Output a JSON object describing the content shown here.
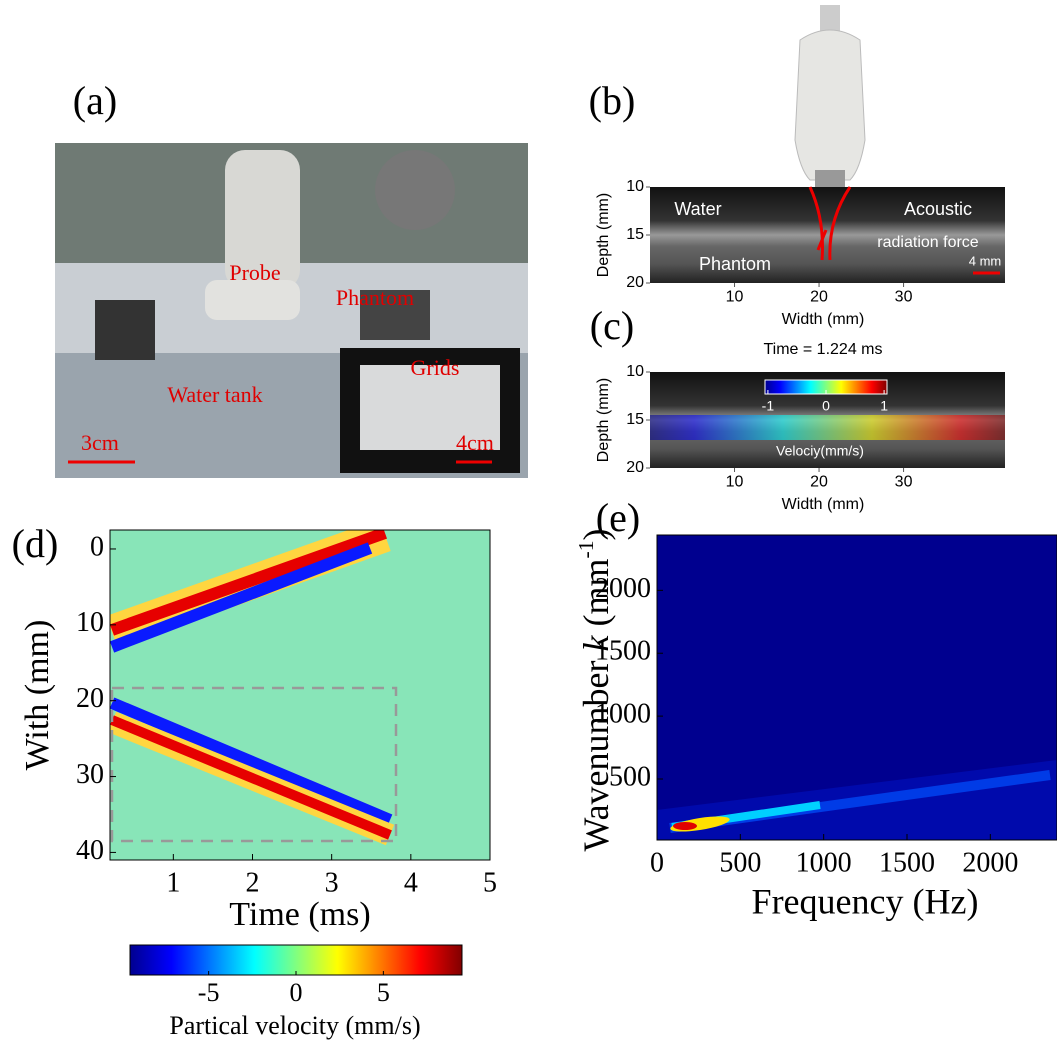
{
  "chart_data": [
    {
      "type": "image",
      "label": "(a)",
      "annotations": [
        "Probe",
        "Phantom",
        "Water tank",
        "Grids",
        "3cm",
        "4cm"
      ]
    },
    {
      "type": "heatmap",
      "label": "(b)",
      "xlabel": "Width (mm)",
      "ylabel": "Depth (mm)",
      "xlim": [
        0,
        42
      ],
      "ylim": [
        10,
        20
      ],
      "y_inverted": true,
      "xticks": [
        10,
        20,
        30
      ],
      "yticks": [
        10,
        15,
        20
      ],
      "annotations": [
        "Water",
        "Acoustic",
        "radiation force",
        "Phantom",
        "4 mm"
      ]
    },
    {
      "type": "heatmap",
      "label": "(c)",
      "title": "Time = 1.224 ms",
      "xlabel": "Width (mm)",
      "ylabel": "Depth (mm)",
      "xlim": [
        0,
        42
      ],
      "ylim": [
        10,
        20
      ],
      "y_inverted": true,
      "xticks": [
        10,
        20,
        30
      ],
      "yticks": [
        10,
        15,
        20
      ],
      "colorbar": {
        "label": "Velociy(mm/s)",
        "lim": [
          -1.05,
          1.05
        ],
        "ticks": [
          -1,
          0,
          1
        ]
      }
    },
    {
      "type": "heatmap",
      "label": "(d)",
      "xlabel": "Time (ms)",
      "ylabel": "With (mm)",
      "xlim": [
        0.2,
        5
      ],
      "ylim": [
        -2.5,
        41
      ],
      "y_inverted": true,
      "xticks": [
        1,
        2,
        3,
        4,
        5
      ],
      "yticks": [
        0,
        10,
        20,
        30,
        40
      ],
      "colorbar": {
        "label": "Partical velocity (mm/s)",
        "lim": [
          -9.5,
          9.5
        ],
        "ticks": [
          -5,
          0,
          5
        ]
      }
    },
    {
      "type": "heatmap",
      "label": "(e)",
      "xlabel": "Frequency (Hz)",
      "ylabel_parts": [
        "Wavenumber ",
        "k",
        " (mm",
        "-1",
        ")"
      ],
      "xlim": [
        0,
        2400
      ],
      "ylim": [
        15,
        2440
      ],
      "xticks": [
        0,
        500,
        1000,
        1500,
        2000
      ],
      "yticks": [
        500,
        1000,
        1500,
        2000
      ]
    }
  ]
}
